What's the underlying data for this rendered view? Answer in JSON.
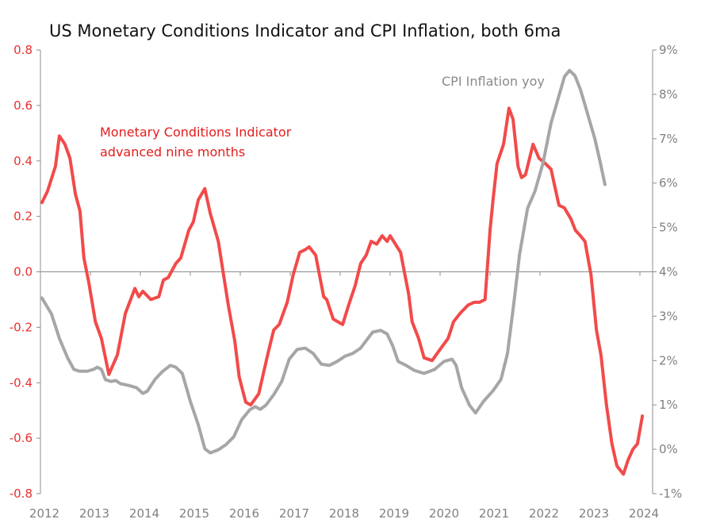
{
  "chart_data": {
    "type": "line",
    "title": "US Monetary Conditions Indicator and CPI Inflation, both 6ma",
    "xlabel": "",
    "ylabel": "",
    "xlim": [
      2012,
      2024
    ],
    "ylim_left": [
      -0.8,
      0.8
    ],
    "ylim_right": [
      -1,
      9
    ],
    "x_ticks": [
      "2012",
      "2013",
      "2014",
      "2015",
      "2016",
      "2017",
      "2018",
      "2019",
      "2020",
      "2021",
      "2022",
      "2023",
      "2024"
    ],
    "left_ticks": [
      "0.8",
      "0.6",
      "0.4",
      "0.2",
      "0.0",
      "-0.2",
      "-0.4",
      "-0.6",
      "-0.8"
    ],
    "right_ticks": [
      "9%",
      "8%",
      "7%",
      "6%",
      "5%",
      "4%",
      "3%",
      "2%",
      "1%",
      "0%",
      "-1%"
    ],
    "grid": false,
    "annotations": {
      "mci_line1": "Monetary Conditions Indicator",
      "mci_line2": "advanced nine months",
      "cpi": "CPI Inflation yoy"
    },
    "series": [
      {
        "name": "Monetary Conditions Indicator advanced nine months",
        "axis": "left",
        "color": "#f24a4a",
        "points": [
          [
            2012.03,
            0.25
          ],
          [
            2012.14,
            0.29
          ],
          [
            2012.3,
            0.38
          ],
          [
            2012.38,
            0.49
          ],
          [
            2012.49,
            0.46
          ],
          [
            2012.59,
            0.41
          ],
          [
            2012.7,
            0.28
          ],
          [
            2012.79,
            0.22
          ],
          [
            2012.87,
            0.05
          ],
          [
            2012.97,
            -0.04
          ],
          [
            2013.1,
            -0.18
          ],
          [
            2013.22,
            -0.24
          ],
          [
            2013.37,
            -0.37
          ],
          [
            2013.54,
            -0.3
          ],
          [
            2013.7,
            -0.15
          ],
          [
            2013.89,
            -0.06
          ],
          [
            2013.97,
            -0.09
          ],
          [
            2014.05,
            -0.07
          ],
          [
            2014.21,
            -0.1
          ],
          [
            2014.37,
            -0.09
          ],
          [
            2014.46,
            -0.03
          ],
          [
            2014.56,
            -0.02
          ],
          [
            2014.71,
            0.03
          ],
          [
            2014.81,
            0.05
          ],
          [
            2014.97,
            0.15
          ],
          [
            2015.06,
            0.18
          ],
          [
            2015.16,
            0.26
          ],
          [
            2015.29,
            0.3
          ],
          [
            2015.4,
            0.21
          ],
          [
            2015.56,
            0.11
          ],
          [
            2015.76,
            -0.12
          ],
          [
            2015.89,
            -0.25
          ],
          [
            2015.98,
            -0.38
          ],
          [
            2016.11,
            -0.47
          ],
          [
            2016.21,
            -0.48
          ],
          [
            2016.37,
            -0.44
          ],
          [
            2016.56,
            -0.29
          ],
          [
            2016.67,
            -0.21
          ],
          [
            2016.78,
            -0.19
          ],
          [
            2016.94,
            -0.11
          ],
          [
            2017.06,
            -0.01
          ],
          [
            2017.19,
            0.07
          ],
          [
            2017.3,
            0.08
          ],
          [
            2017.38,
            0.09
          ],
          [
            2017.51,
            0.06
          ],
          [
            2017.67,
            -0.09
          ],
          [
            2017.73,
            -0.1
          ],
          [
            2017.86,
            -0.17
          ],
          [
            2017.95,
            -0.18
          ],
          [
            2018.05,
            -0.19
          ],
          [
            2018.17,
            -0.12
          ],
          [
            2018.3,
            -0.05
          ],
          [
            2018.41,
            0.03
          ],
          [
            2018.52,
            0.06
          ],
          [
            2018.62,
            0.11
          ],
          [
            2018.73,
            0.1
          ],
          [
            2018.84,
            0.13
          ],
          [
            2018.94,
            0.11
          ],
          [
            2019.0,
            0.13
          ],
          [
            2019.21,
            0.07
          ],
          [
            2019.37,
            -0.08
          ],
          [
            2019.44,
            -0.18
          ],
          [
            2019.57,
            -0.24
          ],
          [
            2019.68,
            -0.31
          ],
          [
            2019.84,
            -0.32
          ],
          [
            2019.998,
            -0.28
          ],
          [
            2020.16,
            -0.24
          ],
          [
            2020.27,
            -0.18
          ],
          [
            2020.4,
            -0.15
          ],
          [
            2020.56,
            -0.12
          ],
          [
            2020.68,
            -0.11
          ],
          [
            2020.79,
            -0.11
          ],
          [
            2020.9,
            -0.1
          ],
          [
            2021.0,
            0.15
          ],
          [
            2021.06,
            0.26
          ],
          [
            2021.14,
            0.39
          ],
          [
            2021.27,
            0.46
          ],
          [
            2021.38,
            0.59
          ],
          [
            2021.46,
            0.55
          ],
          [
            2021.56,
            0.38
          ],
          [
            2021.63,
            0.34
          ],
          [
            2021.71,
            0.35
          ],
          [
            2021.86,
            0.46
          ],
          [
            2021.98,
            0.41
          ],
          [
            2022.11,
            0.39
          ],
          [
            2022.22,
            0.37
          ],
          [
            2022.38,
            0.24
          ],
          [
            2022.49,
            0.23
          ],
          [
            2022.62,
            0.19
          ],
          [
            2022.71,
            0.15
          ],
          [
            2022.81,
            0.13
          ],
          [
            2022.9,
            0.11
          ],
          [
            2023.02,
            -0.01
          ],
          [
            2023.13,
            -0.21
          ],
          [
            2023.22,
            -0.3
          ],
          [
            2023.33,
            -0.48
          ],
          [
            2023.44,
            -0.62
          ],
          [
            2023.54,
            -0.7
          ],
          [
            2023.67,
            -0.73
          ],
          [
            2023.76,
            -0.68
          ],
          [
            2023.86,
            -0.64
          ],
          [
            2023.95,
            -0.62
          ],
          [
            2024.05,
            -0.52
          ]
        ]
      },
      {
        "name": "CPI Inflation yoy",
        "axis": "right",
        "color": "#a6a6a6",
        "points": [
          [
            2012.03,
            3.41
          ],
          [
            2012.22,
            3.05
          ],
          [
            2012.38,
            2.5
          ],
          [
            2012.54,
            2.07
          ],
          [
            2012.67,
            1.8
          ],
          [
            2012.78,
            1.76
          ],
          [
            2012.94,
            1.76
          ],
          [
            2013.06,
            1.8
          ],
          [
            2013.14,
            1.85
          ],
          [
            2013.22,
            1.8
          ],
          [
            2013.3,
            1.57
          ],
          [
            2013.41,
            1.53
          ],
          [
            2013.51,
            1.55
          ],
          [
            2013.6,
            1.48
          ],
          [
            2013.76,
            1.44
          ],
          [
            2013.92,
            1.39
          ],
          [
            2014.05,
            1.26
          ],
          [
            2014.14,
            1.31
          ],
          [
            2014.29,
            1.57
          ],
          [
            2014.44,
            1.75
          ],
          [
            2014.6,
            1.89
          ],
          [
            2014.71,
            1.85
          ],
          [
            2014.84,
            1.71
          ],
          [
            2015.0,
            1.08
          ],
          [
            2015.16,
            0.55
          ],
          [
            2015.29,
            0.01
          ],
          [
            2015.4,
            -0.08
          ],
          [
            2015.56,
            -0.01
          ],
          [
            2015.71,
            0.1
          ],
          [
            2015.87,
            0.28
          ],
          [
            2016.03,
            0.67
          ],
          [
            2016.19,
            0.89
          ],
          [
            2016.3,
            0.96
          ],
          [
            2016.4,
            0.9
          ],
          [
            2016.51,
            0.99
          ],
          [
            2016.67,
            1.23
          ],
          [
            2016.83,
            1.53
          ],
          [
            2016.98,
            2.03
          ],
          [
            2017.14,
            2.25
          ],
          [
            2017.3,
            2.28
          ],
          [
            2017.46,
            2.16
          ],
          [
            2017.62,
            1.92
          ],
          [
            2017.78,
            1.89
          ],
          [
            2017.94,
            1.98
          ],
          [
            2018.1,
            2.1
          ],
          [
            2018.25,
            2.16
          ],
          [
            2018.41,
            2.28
          ],
          [
            2018.57,
            2.52
          ],
          [
            2018.65,
            2.64
          ],
          [
            2018.81,
            2.68
          ],
          [
            2018.94,
            2.6
          ],
          [
            2019.05,
            2.34
          ],
          [
            2019.16,
            1.98
          ],
          [
            2019.32,
            1.89
          ],
          [
            2019.48,
            1.78
          ],
          [
            2019.68,
            1.71
          ],
          [
            2019.89,
            1.8
          ],
          [
            2020.08,
            1.98
          ],
          [
            2020.24,
            2.03
          ],
          [
            2020.32,
            1.89
          ],
          [
            2020.43,
            1.39
          ],
          [
            2020.59,
            0.99
          ],
          [
            2020.71,
            0.82
          ],
          [
            2020.87,
            1.08
          ],
          [
            2021.06,
            1.32
          ],
          [
            2021.22,
            1.58
          ],
          [
            2021.35,
            2.16
          ],
          [
            2021.48,
            3.32
          ],
          [
            2021.59,
            4.39
          ],
          [
            2021.75,
            5.43
          ],
          [
            2021.9,
            5.82
          ],
          [
            2022.06,
            6.45
          ],
          [
            2022.22,
            7.35
          ],
          [
            2022.38,
            7.97
          ],
          [
            2022.49,
            8.4
          ],
          [
            2022.59,
            8.54
          ],
          [
            2022.7,
            8.42
          ],
          [
            2022.81,
            8.11
          ],
          [
            2022.94,
            7.61
          ],
          [
            2023.1,
            6.99
          ],
          [
            2023.21,
            6.45
          ],
          [
            2023.3,
            5.97
          ]
        ]
      }
    ]
  }
}
